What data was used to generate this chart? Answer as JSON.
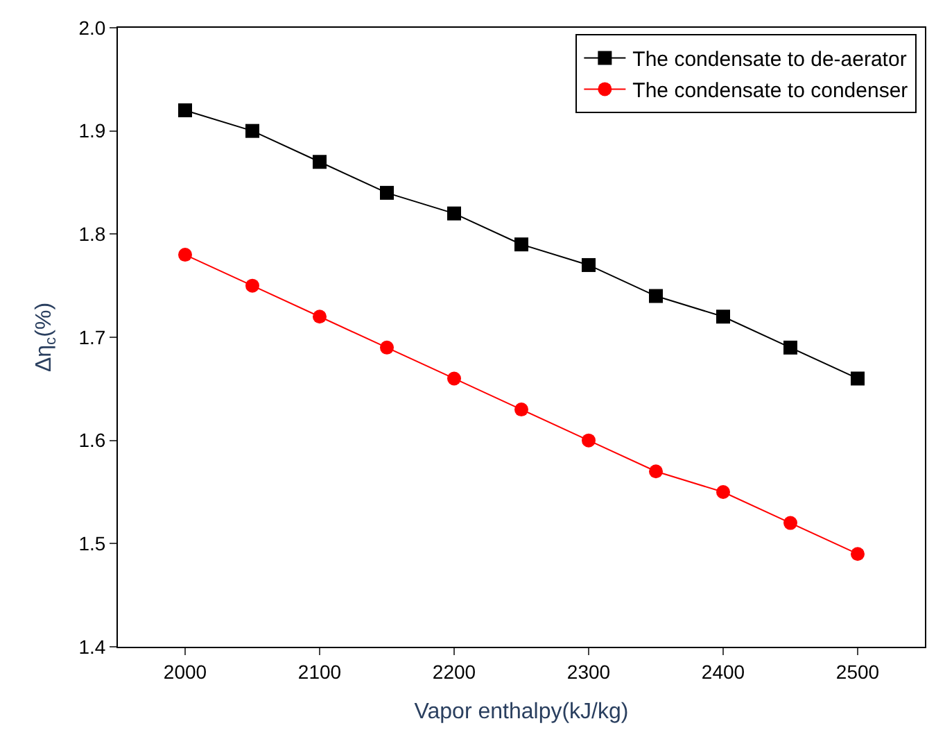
{
  "chart_data": {
    "type": "line",
    "xlabel": "Vapor enthalpy(kJ/kg)",
    "ylabel": "Δη$_{c}$(%)",
    "x": [
      2000,
      2050,
      2100,
      2150,
      2200,
      2250,
      2300,
      2350,
      2400,
      2450,
      2500
    ],
    "series": [
      {
        "name": "The condensate to de-aerator",
        "color": "#000000",
        "marker": "square",
        "values": [
          1.92,
          1.9,
          1.87,
          1.84,
          1.82,
          1.79,
          1.77,
          1.74,
          1.72,
          1.69,
          1.66
        ]
      },
      {
        "name": "The condensate to condenser",
        "color": "#ff0000",
        "marker": "circle",
        "values": [
          1.78,
          1.75,
          1.72,
          1.69,
          1.66,
          1.63,
          1.6,
          1.57,
          1.55,
          1.52,
          1.49
        ]
      }
    ],
    "xlim": [
      1950,
      2550
    ],
    "xticks": [
      2000,
      2100,
      2200,
      2300,
      2400,
      2500
    ],
    "ylim": [
      1.4,
      2.0
    ],
    "yticks": [
      1.4,
      1.5,
      1.6,
      1.7,
      1.8,
      1.9,
      {
        "value": 2.0,
        "label": "2.0"
      }
    ],
    "legend": "top right",
    "line_style": "solid"
  }
}
